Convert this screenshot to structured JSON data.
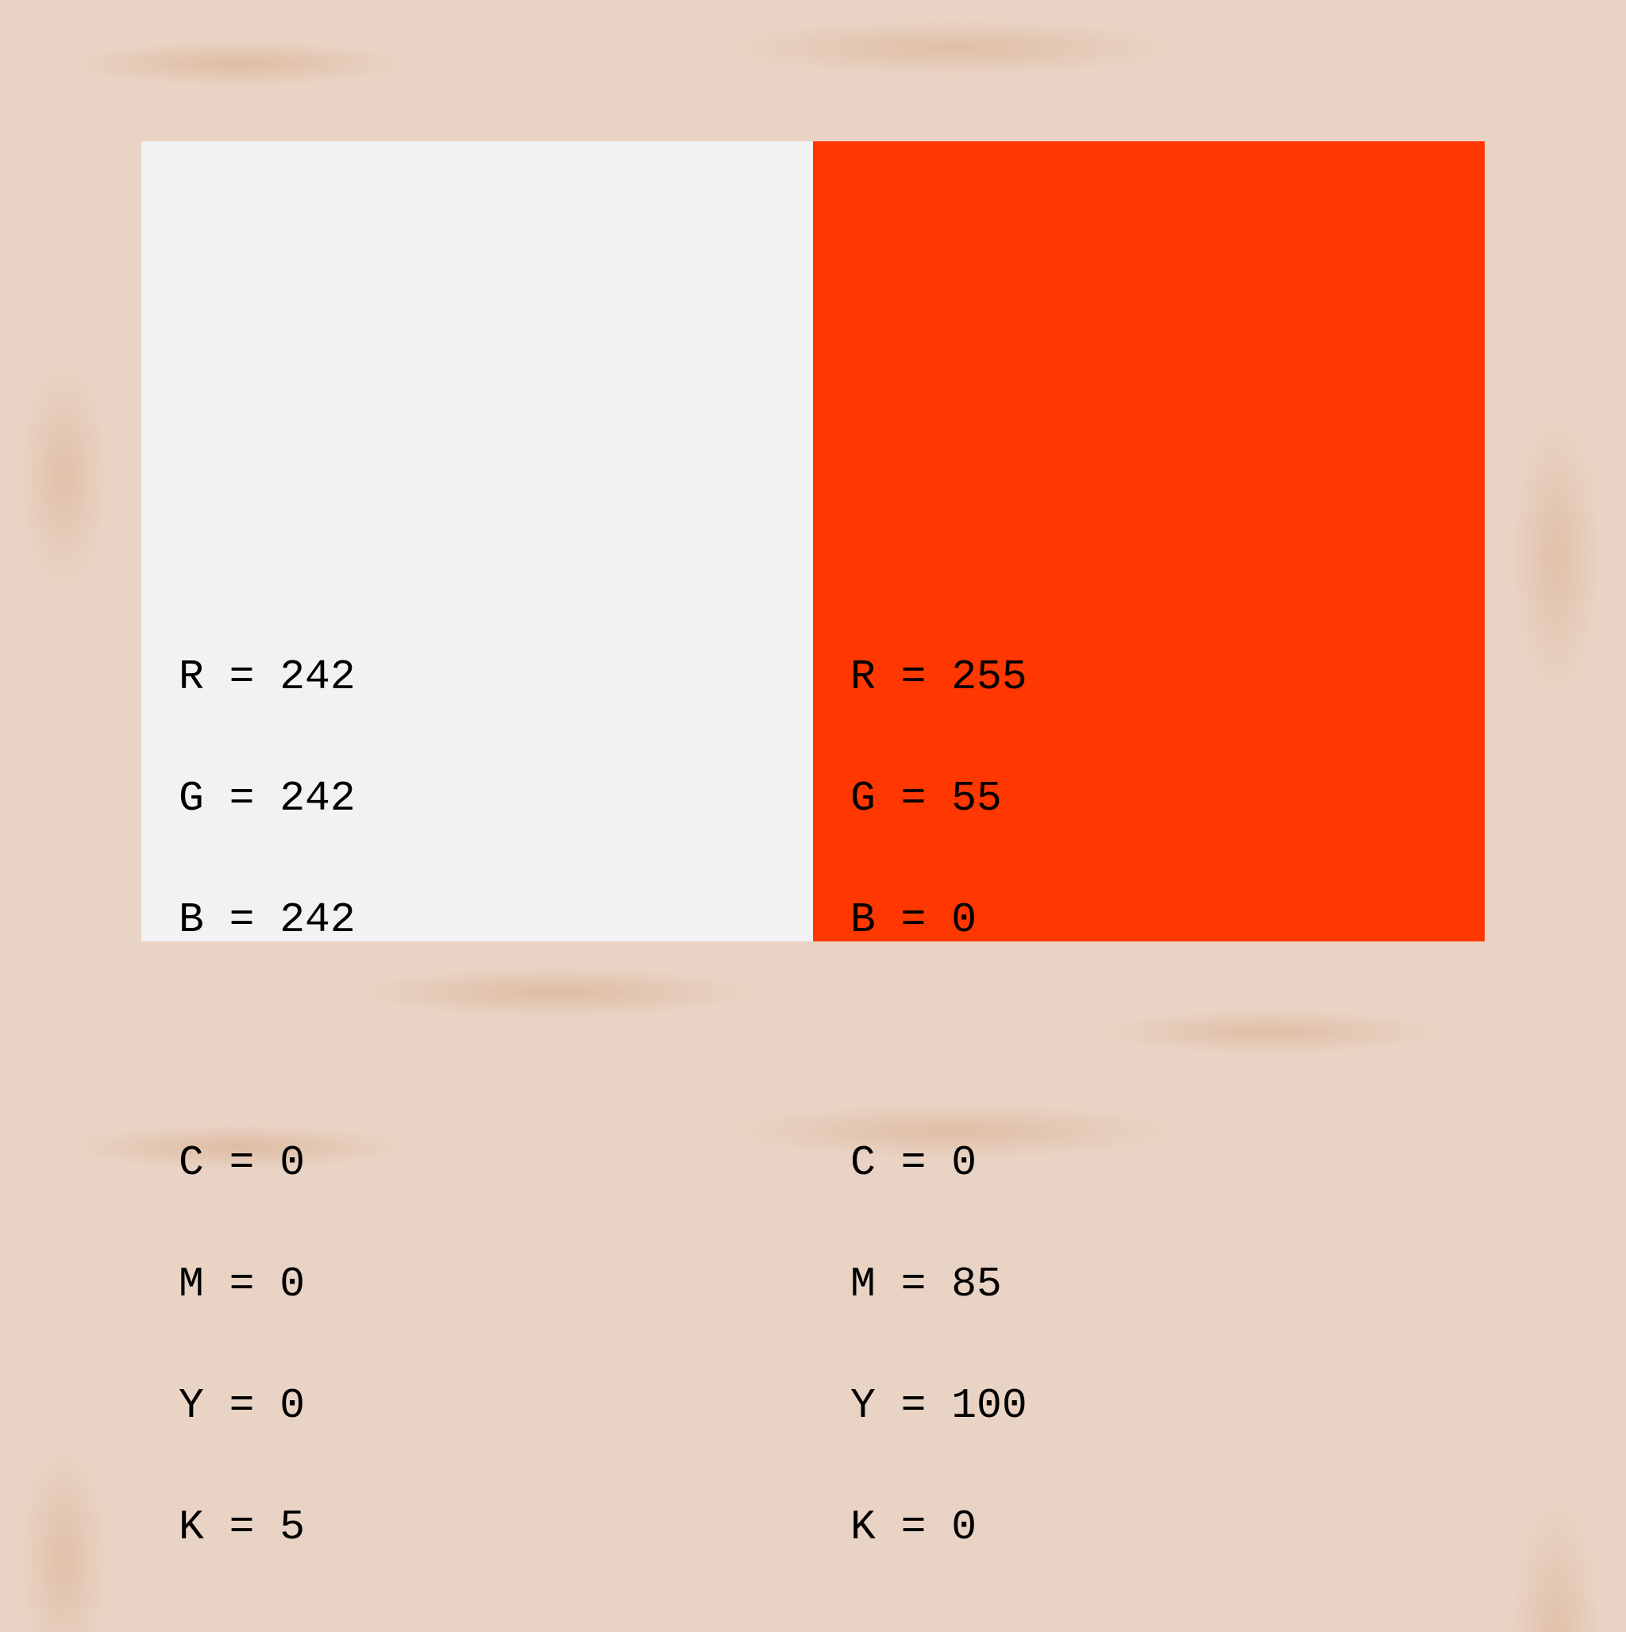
{
  "swatches": [
    {
      "color": "#f2f2f2",
      "rgb": [
        "R = 242",
        "G = 242",
        "B = 242"
      ],
      "cmyk": [
        "C = 0",
        "M = 0",
        "Y = 0",
        "K = 5"
      ]
    },
    {
      "color": "#ff3700",
      "rgb": [
        "R = 255",
        "G = 55",
        "B = 0"
      ],
      "cmyk": [
        "C = 0",
        "M = 85",
        "Y = 100",
        "K = 0"
      ]
    }
  ]
}
